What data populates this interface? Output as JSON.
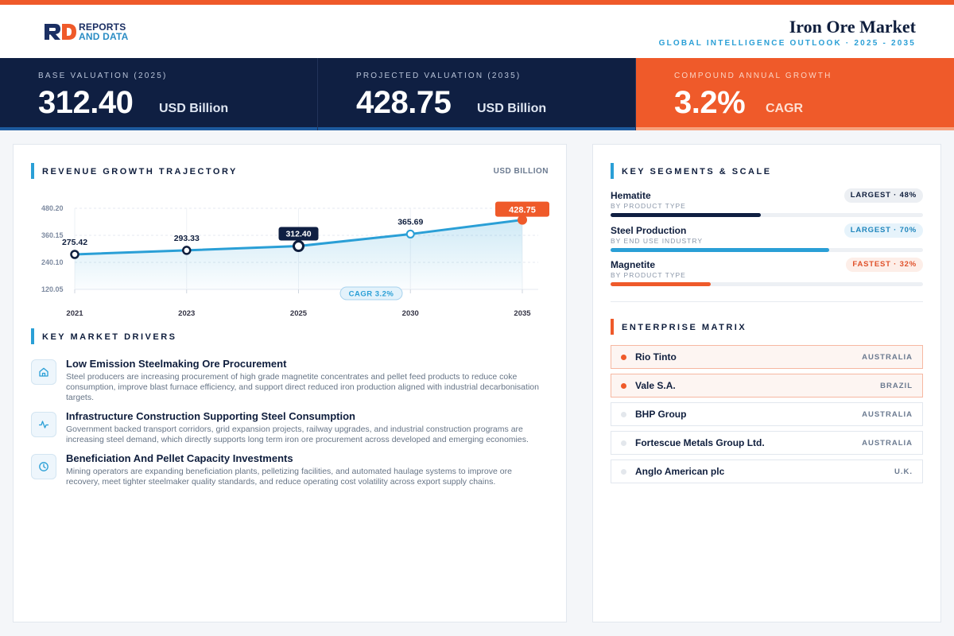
{
  "brand": {
    "line1": "REPORTS",
    "line2": "AND DATA"
  },
  "header": {
    "title": "Iron Ore Market",
    "subtitle": "GLOBAL INTELLIGENCE OUTLOOK  ·  2025 - 2035"
  },
  "kpis": [
    {
      "label": "BASE VALUATION (2025)",
      "value": "312.40",
      "unit": "USD Billion"
    },
    {
      "label": "PROJECTED VALUATION (2035)",
      "value": "428.75",
      "unit": "USD Billion"
    },
    {
      "label": "COMPOUND ANNUAL GROWTH",
      "value": "3.2%",
      "unit": "CAGR"
    }
  ],
  "revenue": {
    "title": "REVENUE GROWTH TRAJECTORY",
    "unit": "USD BILLION",
    "cagr_label": "CAGR 3.2%"
  },
  "chart_data": {
    "type": "area",
    "x": [
      "2021",
      "2023",
      "2025",
      "2030",
      "2035"
    ],
    "values": [
      275.42,
      293.33,
      312.4,
      365.69,
      428.75
    ],
    "labels": [
      "275.42",
      "293.33",
      "312.40",
      "365.69",
      "428.75"
    ],
    "yticks": [
      "480.20",
      "360.15",
      "240.10",
      "120.05"
    ],
    "ylim": [
      120.05,
      480.2
    ],
    "line_color": "#2a9fd6",
    "highlight_color": "#ef5a2a",
    "grid": true
  },
  "drivers": {
    "title": "KEY MARKET DRIVERS",
    "items": [
      {
        "icon": "home-icon",
        "title": "Low Emission Steelmaking Ore Procurement",
        "desc": "Steel producers are increasing procurement of high grade magnetite concentrates and pellet feed products to reduce coke consumption, improve blast furnace efficiency, and support direct reduced iron production aligned with industrial decarbonisation targets."
      },
      {
        "icon": "activity-icon",
        "title": "Infrastructure Construction Supporting Steel Consumption",
        "desc": "Government backed transport corridors, grid expansion projects, railway upgrades, and industrial construction programs are increasing steel demand, which directly supports long term iron ore procurement across developed and emerging economies."
      },
      {
        "icon": "clock-icon",
        "title": "Beneficiation And Pellet Capacity Investments",
        "desc": "Mining operators are expanding beneficiation plants, pelletizing facilities, and automated haulage systems to improve ore recovery, meet tighter steelmaker quality standards, and reduce operating cost volatility across export supply chains."
      }
    ]
  },
  "segments": {
    "title": "KEY SEGMENTS & SCALE",
    "items": [
      {
        "name": "Hematite",
        "sub": "BY PRODUCT TYPE",
        "badge": "LARGEST · 48%",
        "share": 0.48,
        "color": "#0f1f42",
        "badge_bg": "#eceff3",
        "badge_fg": "#0f1e3d"
      },
      {
        "name": "Steel Production",
        "sub": "BY END USE INDUSTRY",
        "badge": "LARGEST · 70%",
        "share": 0.7,
        "color": "#2a9fd6",
        "badge_bg": "#e6f3fb",
        "badge_fg": "#1f86bd"
      },
      {
        "name": "Magnetite",
        "sub": "BY PRODUCT TYPE",
        "badge": "FASTEST · 32%",
        "share": 0.32,
        "color": "#ef5a2a",
        "badge_bg": "#fdeee8",
        "badge_fg": "#e0512a"
      }
    ]
  },
  "enterprise": {
    "title": "ENTERPRISE MATRIX",
    "items": [
      {
        "name": "Rio Tinto",
        "country": "AUSTRALIA",
        "highlight": true
      },
      {
        "name": "Vale S.A.",
        "country": "BRAZIL",
        "highlight": true
      },
      {
        "name": "BHP Group",
        "country": "AUSTRALIA",
        "highlight": false
      },
      {
        "name": "Fortescue Metals Group Ltd.",
        "country": "AUSTRALIA",
        "highlight": false
      },
      {
        "name": "Anglo American plc",
        "country": "U.K.",
        "highlight": false
      }
    ]
  }
}
